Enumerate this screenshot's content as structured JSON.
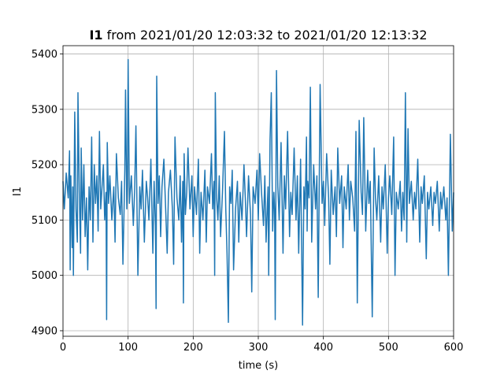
{
  "chart_data": {
    "type": "line",
    "title": {
      "bold_part": "I1",
      "rest": " from 2021/01/20 12:03:32 to 2021/01/20 12:13:32"
    },
    "xlabel": "time (s)",
    "ylabel": "I1",
    "xlim": [
      0,
      600
    ],
    "ylim": [
      4890,
      5415
    ],
    "x_ticks": [
      0,
      100,
      200,
      300,
      400,
      500,
      600
    ],
    "y_ticks": [
      4900,
      5000,
      5100,
      5200,
      5300,
      5400
    ],
    "grid": true,
    "series": [
      {
        "color": "#1f77b4",
        "x": [
          0,
          2,
          5,
          8,
          10,
          11,
          12,
          14,
          15,
          16,
          18,
          20,
          22,
          23,
          25,
          27,
          28,
          30,
          32,
          34,
          36,
          38,
          40,
          42,
          44,
          46,
          48,
          50,
          52,
          54,
          56,
          58,
          60,
          62,
          64,
          66,
          67,
          68,
          70,
          72,
          75,
          78,
          80,
          82,
          85,
          88,
          90,
          92,
          94,
          95,
          96,
          98,
          99,
          100,
          102,
          105,
          108,
          110,
          112,
          115,
          118,
          120,
          122,
          125,
          128,
          130,
          132,
          135,
          138,
          140,
          142,
          143,
          144,
          146,
          148,
          150,
          152,
          155,
          158,
          160,
          162,
          165,
          168,
          170,
          172,
          175,
          178,
          180,
          182,
          184,
          185,
          186,
          188,
          190,
          192,
          195,
          198,
          200,
          202,
          205,
          208,
          210,
          212,
          215,
          218,
          220,
          222,
          225,
          228,
          230,
          232,
          233,
          234,
          236,
          238,
          240,
          242,
          245,
          248,
          250,
          252,
          254,
          256,
          258,
          260,
          262,
          265,
          268,
          270,
          272,
          275,
          278,
          280,
          282,
          285,
          288,
          290,
          292,
          295,
          298,
          300,
          302,
          305,
          308,
          310,
          312,
          314,
          315,
          316,
          318,
          320,
          322,
          324,
          325,
          326,
          328,
          330,
          332,
          335,
          338,
          340,
          342,
          345,
          348,
          350,
          352,
          355,
          358,
          360,
          362,
          365,
          368,
          370,
          372,
          374,
          375,
          376,
          378,
          380,
          382,
          385,
          388,
          390,
          392,
          395,
          398,
          400,
          402,
          405,
          408,
          410,
          412,
          415,
          418,
          420,
          422,
          425,
          428,
          430,
          432,
          435,
          438,
          440,
          442,
          445,
          448,
          450,
          452,
          455,
          458,
          460,
          462,
          465,
          468,
          470,
          472,
          475,
          478,
          480,
          482,
          485,
          488,
          490,
          492,
          495,
          498,
          500,
          502,
          505,
          508,
          510,
          512,
          515,
          518,
          520,
          522,
          524,
          526,
          528,
          530,
          532,
          535,
          538,
          540,
          542,
          545,
          548,
          550,
          552,
          555,
          558,
          560,
          562,
          565,
          568,
          570,
          572,
          575,
          578,
          580,
          582,
          585,
          588,
          590,
          592,
          595,
          598,
          600
        ],
        "y": [
          5170,
          5120,
          5185,
          5140,
          5225,
          5010,
          5180,
          5050,
          5160,
          5000,
          5295,
          5120,
          5060,
          5330,
          5150,
          5040,
          5230,
          5100,
          5200,
          5070,
          5140,
          5010,
          5160,
          5100,
          5250,
          5060,
          5200,
          5130,
          5180,
          5080,
          5260,
          5120,
          5160,
          5200,
          5100,
          5150,
          4920,
          5240,
          5130,
          5180,
          5100,
          5160,
          5060,
          5220,
          5140,
          5110,
          5170,
          5020,
          5130,
          5190,
          5335,
          5120,
          5165,
          5390,
          5130,
          5180,
          5090,
          5150,
          5270,
          5000,
          5160,
          5120,
          5190,
          5060,
          5170,
          5140,
          5100,
          5210,
          5040,
          5170,
          5090,
          4940,
          5360,
          5130,
          5180,
          5070,
          5160,
          5210,
          5110,
          5040,
          5150,
          5190,
          5120,
          5020,
          5250,
          5140,
          5100,
          5180,
          5060,
          5170,
          4950,
          5220,
          5110,
          5150,
          5230,
          5120,
          5180,
          5070,
          5160,
          5110,
          5210,
          5040,
          5150,
          5100,
          5190,
          5060,
          5160,
          5130,
          5220,
          5120,
          5170,
          5000,
          5330,
          5140,
          5100,
          5180,
          5070,
          5150,
          5260,
          5120,
          5040,
          4915,
          5160,
          5130,
          5190,
          5010,
          5120,
          5170,
          5060,
          5150,
          5100,
          5200,
          5140,
          5070,
          5180,
          5110,
          4970,
          5160,
          5130,
          5190,
          5100,
          5220,
          5150,
          5090,
          5180,
          5060,
          5130,
          5160,
          5000,
          5245,
          5330,
          5080,
          5150,
          5120,
          4920,
          5370,
          5160,
          5100,
          5240,
          5040,
          5180,
          5120,
          5260,
          5070,
          5150,
          5110,
          5230,
          5100,
          5180,
          5040,
          5210,
          4910,
          5160,
          5120,
          5250,
          5080,
          5170,
          5140,
          5340,
          5060,
          5200,
          5120,
          5180,
          4960,
          5345,
          5130,
          5170,
          5090,
          5220,
          5140,
          5020,
          5190,
          5110,
          5160,
          5070,
          5230,
          5130,
          5180,
          5050,
          5160,
          5120,
          5200,
          5100,
          5170,
          5140,
          5080,
          5260,
          4950,
          5280,
          5150,
          5110,
          5285,
          5080,
          5190,
          5130,
          5170,
          4925,
          5230,
          5140,
          5100,
          5180,
          5060,
          5160,
          5120,
          5200,
          5040,
          5140,
          5180,
          5110,
          5250,
          5000,
          5150,
          5120,
          5170,
          5080,
          5150,
          5100,
          5330,
          5060,
          5265,
          5130,
          5170,
          5100,
          5150,
          5120,
          5210,
          5060,
          5160,
          5130,
          5180,
          5030,
          5150,
          5120,
          5160,
          5090,
          5150,
          5130,
          5170,
          5080,
          5150,
          5120,
          5160,
          5100,
          5140,
          5000,
          5255,
          5080,
          5150
        ]
      }
    ]
  }
}
